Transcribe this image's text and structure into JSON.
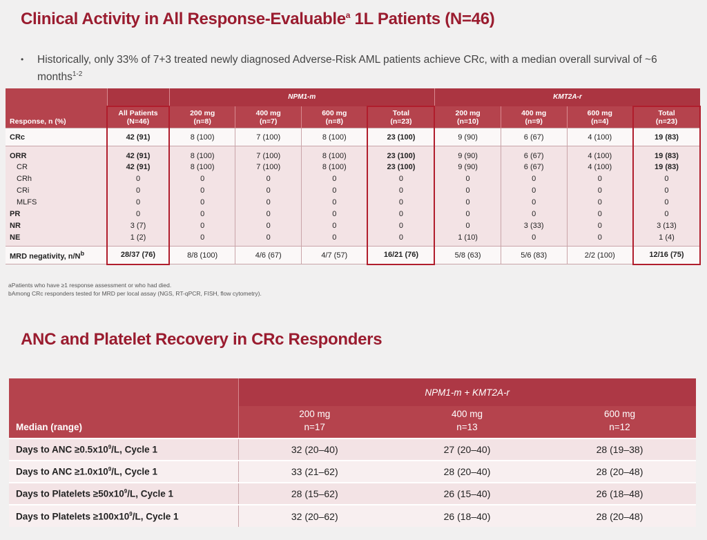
{
  "title1": "Clinical Activity in All Response-Evaluable",
  "title1_sup": "a",
  "title1_tail": " 1L Patients (N=46)",
  "bullet": {
    "icon": "bullet-dot",
    "text": "Historically, only 33% of 7+3 treated newly diagnosed Adverse-Risk AML patients achieve CRc, with a median overall survival of ~6 months",
    "sup": "1-2"
  },
  "table1": {
    "groups": [
      "NPM1-m",
      "KMT2A-r"
    ],
    "headers": [
      [
        "Response, n (%)",
        ""
      ],
      [
        "All Patients",
        "(N=46)"
      ],
      [
        "200 mg",
        "(n=8)"
      ],
      [
        "400 mg",
        "(n=7)"
      ],
      [
        "600 mg",
        "(n=8)"
      ],
      [
        "Total",
        "(n=23)"
      ],
      [
        "200 mg",
        "(n=10)"
      ],
      [
        "400 mg",
        "(n=9)"
      ],
      [
        "600 mg",
        "(n=4)"
      ],
      [
        "Total",
        "(n=23)"
      ]
    ],
    "rows": [
      {
        "label": "CRc",
        "values": [
          "42 (91)",
          "8 (100)",
          "7 (100)",
          "8 (100)",
          "23 (100)",
          "9 (90)",
          "6 (67)",
          "4 (100)",
          "19 (83)"
        ]
      },
      {
        "label": "ORR",
        "values": [
          "42 (91)",
          "8 (100)",
          "7 (100)",
          "8 (100)",
          "23 (100)",
          "9 (90)",
          "6 (67)",
          "4 (100)",
          "19 (83)"
        ]
      },
      {
        "label": "CR",
        "values": [
          "42 (91)",
          "8 (100)",
          "7 (100)",
          "8 (100)",
          "23 (100)",
          "9 (90)",
          "6 (67)",
          "4 (100)",
          "19 (83)"
        ]
      },
      {
        "label": "CRh",
        "values": [
          "0",
          "0",
          "0",
          "0",
          "0",
          "0",
          "0",
          "0",
          "0"
        ]
      },
      {
        "label": "CRi",
        "values": [
          "0",
          "0",
          "0",
          "0",
          "0",
          "0",
          "0",
          "0",
          "0"
        ]
      },
      {
        "label": "MLFS",
        "values": [
          "0",
          "0",
          "0",
          "0",
          "0",
          "0",
          "0",
          "0",
          "0"
        ]
      },
      {
        "label": "PR",
        "values": [
          "0",
          "0",
          "0",
          "0",
          "0",
          "0",
          "0",
          "0",
          "0"
        ]
      },
      {
        "label": "NR",
        "values": [
          "3 (7)",
          "0",
          "0",
          "0",
          "0",
          "0",
          "3 (33)",
          "0",
          "3 (13)"
        ]
      },
      {
        "label": "NE",
        "values": [
          "1 (2)",
          "0",
          "0",
          "0",
          "0",
          "1 (10)",
          "0",
          "0",
          "1 (4)"
        ]
      },
      {
        "label": "MRD negativity, n/N",
        "label_sup": "b",
        "values": [
          "28/37 (76)",
          "8/8 (100)",
          "4/6 (67)",
          "4/7 (57)",
          "16/21 (76)",
          "5/8 (63)",
          "5/6 (83)",
          "2/2 (100)",
          "12/16 (75)"
        ]
      }
    ],
    "footnotes": [
      "aPatients who have ≥1 response assessment or who had died.",
      "bAmong CRc responders tested for MRD per local assay (NGS, RT-qPCR, FISH, flow cytometry)."
    ]
  },
  "title2": "ANC and Platelet Recovery in CRc Responders",
  "table2": {
    "group": "NPM1-m + KMT2A-r",
    "header_label": "Median (range)",
    "doses": [
      [
        "200 mg",
        "n=17"
      ],
      [
        "400 mg",
        "n=13"
      ],
      [
        "600 mg",
        "n=12"
      ]
    ],
    "rows": [
      {
        "label": "Days to ANC ≥0.5x10",
        "sup": "9",
        "tail": "/L, Cycle 1",
        "values": [
          "32 (20–40)",
          "27 (20–40)",
          "28 (19–38)"
        ]
      },
      {
        "label": "Days to ANC ≥1.0x10",
        "sup": "9",
        "tail": "/L, Cycle 1",
        "values": [
          "33 (21–62)",
          "28 (20–40)",
          "28 (20–48)"
        ]
      },
      {
        "label": "Days to Platelets ≥50x10",
        "sup": "9",
        "tail": "/L, Cycle 1",
        "values": [
          "28 (15–62)",
          "26 (15–40)",
          "26 (18–48)"
        ]
      },
      {
        "label": "Days to Platelets ≥100x10",
        "sup": "9",
        "tail": "/L, Cycle 1",
        "values": [
          "32 (20–62)",
          "26 (18–40)",
          "28 (20–48)"
        ]
      }
    ]
  },
  "colors": {
    "title": "#9a1c2f",
    "header": "#b5434d",
    "highlight": "#b01d2c",
    "row": "#f3e3e5"
  }
}
